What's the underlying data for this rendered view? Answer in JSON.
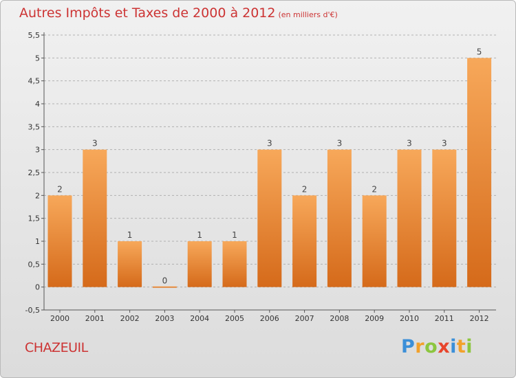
{
  "title": "Autres Impôts et Taxes de 2000 à 2012",
  "subtitle": "(en milliers d'€)",
  "commune": "CHAZEUIL",
  "logo_letters": [
    {
      "ch": "P",
      "color": "#3b8fd8"
    },
    {
      "ch": "r",
      "color": "#f2a12b"
    },
    {
      "ch": "o",
      "color": "#8cc63f"
    },
    {
      "ch": "x",
      "color": "#e8452c"
    },
    {
      "ch": "i",
      "color": "#3b8fd8"
    },
    {
      "ch": "t",
      "color": "#f2a12b"
    },
    {
      "ch": "i",
      "color": "#8cc63f"
    }
  ],
  "colors": {
    "bar_top": "#f7a85a",
    "bar_bottom": "#d56a1a",
    "title": "#cc3333",
    "grid": "#b0b0b0"
  },
  "chart_data": {
    "type": "bar",
    "title": "Autres Impôts et Taxes de 2000 à 2012",
    "subtitle": "(en milliers d'€)",
    "categories": [
      "2000",
      "2001",
      "2002",
      "2003",
      "2004",
      "2005",
      "2006",
      "2007",
      "2008",
      "2009",
      "2010",
      "2011",
      "2012"
    ],
    "values": [
      2,
      3,
      1,
      0,
      1,
      1,
      3,
      2,
      3,
      2,
      3,
      3,
      5
    ],
    "data_labels": [
      "2",
      "3",
      "1",
      "0",
      "1",
      "1",
      "3",
      "2",
      "3",
      "2",
      "3",
      "3",
      "5"
    ],
    "yticks": [
      "-0,5",
      "0",
      "0,5",
      "1",
      "1,5",
      "2",
      "2,5",
      "3",
      "3,5",
      "4",
      "4,5",
      "5",
      "5,5"
    ],
    "ylim": [
      -0.5,
      5.5
    ],
    "grid": "dashed horizontal",
    "legend": "none"
  }
}
